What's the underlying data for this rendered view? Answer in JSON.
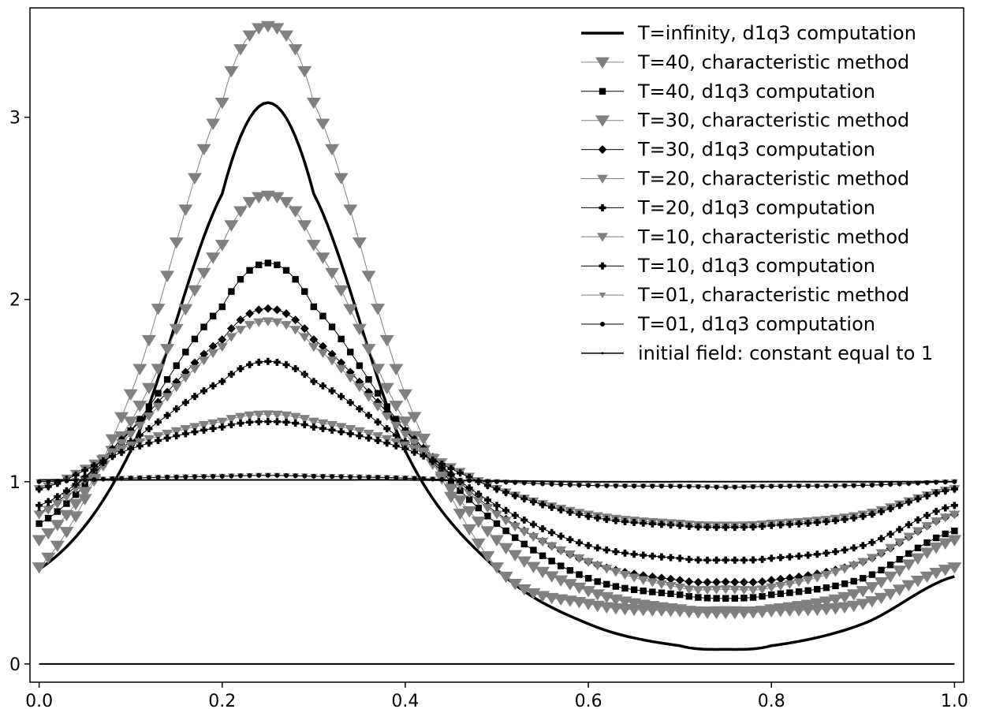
{
  "chart_data": {
    "type": "line",
    "title": "",
    "xlabel": "",
    "ylabel": "",
    "xlim": [
      -0.01,
      1.01
    ],
    "ylim": [
      -0.1,
      3.6
    ],
    "x_ticks": [
      "0.0",
      "0.2",
      "0.4",
      "0.6",
      "0.8",
      "1.0"
    ],
    "y_ticks": [
      "0",
      "1",
      "2",
      "3"
    ],
    "grid": false,
    "legend_position": "top-right",
    "x_samples": [
      0.0,
      0.1,
      0.2,
      0.25,
      0.3,
      0.4,
      0.5,
      0.6,
      0.7,
      0.75,
      0.8,
      0.9,
      1.0
    ],
    "series": [
      {
        "name": "T=infinity, d1q3 computation",
        "color": "#000000",
        "marker": "none",
        "values": [
          0.52,
          1.17,
          2.58,
          3.08,
          2.58,
          1.17,
          0.52,
          0.22,
          0.1,
          0.08,
          0.1,
          0.22,
          0.48
        ]
      },
      {
        "name": "T=40, characteristic method",
        "color": "#808080",
        "marker": "triangle-down-large",
        "values": [
          0.53,
          1.48,
          3.08,
          3.5,
          3.08,
          1.48,
          0.53,
          0.33,
          0.29,
          0.28,
          0.29,
          0.33,
          0.53
        ]
      },
      {
        "name": "T=40, d1q3 computation",
        "color": "#000000",
        "marker": "square",
        "values": [
          0.77,
          1.28,
          1.96,
          2.2,
          1.96,
          1.28,
          0.77,
          0.47,
          0.38,
          0.36,
          0.38,
          0.47,
          0.73
        ]
      },
      {
        "name": "T=30, characteristic method",
        "color": "#808080",
        "marker": "triangle-down-large",
        "values": [
          0.68,
          1.33,
          2.3,
          2.57,
          2.3,
          1.33,
          0.68,
          0.4,
          0.3,
          0.29,
          0.3,
          0.4,
          0.68
        ]
      },
      {
        "name": "T=30, d1q3 computation",
        "color": "#000000",
        "marker": "diamond",
        "values": [
          0.83,
          1.28,
          1.78,
          1.95,
          1.78,
          1.28,
          0.83,
          0.56,
          0.46,
          0.45,
          0.46,
          0.56,
          0.82
        ]
      },
      {
        "name": "T=20, characteristic method",
        "color": "#808080",
        "marker": "triangle-down",
        "values": [
          0.82,
          1.26,
          1.74,
          1.88,
          1.74,
          1.26,
          0.82,
          0.56,
          0.42,
          0.41,
          0.42,
          0.56,
          0.82
        ]
      },
      {
        "name": "T=20, d1q3 computation",
        "color": "#000000",
        "marker": "plus",
        "values": [
          0.87,
          1.22,
          1.55,
          1.66,
          1.55,
          1.22,
          0.87,
          0.65,
          0.58,
          0.57,
          0.58,
          0.65,
          0.87
        ]
      },
      {
        "name": "T=10, characteristic method",
        "color": "#808080",
        "marker": "triangle-down",
        "values": [
          0.96,
          1.2,
          1.33,
          1.37,
          1.33,
          1.2,
          0.96,
          0.82,
          0.77,
          0.76,
          0.77,
          0.82,
          0.96
        ]
      },
      {
        "name": "T=10, d1q3 computation",
        "color": "#000000",
        "marker": "plus",
        "values": [
          0.96,
          1.18,
          1.3,
          1.33,
          1.3,
          1.18,
          0.96,
          0.81,
          0.76,
          0.75,
          0.76,
          0.81,
          0.96
        ]
      },
      {
        "name": "T=01, characteristic method",
        "color": "#808080",
        "marker": "triangle-down-small",
        "values": [
          1.0,
          1.02,
          1.03,
          1.035,
          1.03,
          1.02,
          1.0,
          0.98,
          0.975,
          0.97,
          0.975,
          0.98,
          1.0
        ]
      },
      {
        "name": "T=01, d1q3 computation",
        "color": "#000000",
        "marker": "dot",
        "values": [
          1.0,
          1.02,
          1.03,
          1.035,
          1.03,
          1.02,
          1.0,
          0.98,
          0.975,
          0.97,
          0.975,
          0.98,
          1.0
        ]
      },
      {
        "name": "initial field: constant equal to 1",
        "color": "#000000",
        "marker": "none",
        "values": [
          1.01,
          1.01,
          1.01,
          1.01,
          1.01,
          1.01,
          1.005,
          1.0,
          1.0,
          1.0,
          1.0,
          1.0,
          1.0
        ]
      }
    ],
    "baseline": {
      "color": "#000000",
      "values": [
        0.0,
        0.0
      ]
    }
  }
}
